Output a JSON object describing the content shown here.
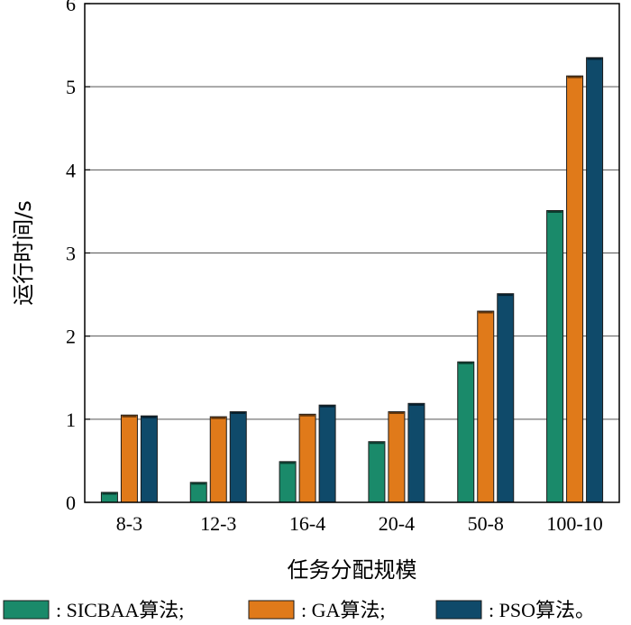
{
  "chart_data": {
    "type": "bar",
    "categories": [
      "8-3",
      "12-3",
      "16-4",
      "20-4",
      "50-8",
      "100-10"
    ],
    "series": [
      {
        "legend_label": ": SICBAA算法;",
        "color": "#1a8a6a",
        "values": [
          0.12,
          0.24,
          0.49,
          0.73,
          1.69,
          3.51
        ]
      },
      {
        "legend_label": ": GA算法;",
        "color": "#e07a1a",
        "values": [
          1.05,
          1.03,
          1.06,
          1.09,
          2.3,
          5.13
        ]
      },
      {
        "legend_label": ": PSO算法。",
        "color": "#0f4a6a",
        "values": [
          1.04,
          1.09,
          1.17,
          1.19,
          2.51,
          5.35
        ]
      }
    ],
    "xlabel": "任务分配规模",
    "ylabel": "运行时间/s",
    "ylim": [
      0,
      6
    ],
    "yticks": [
      "0",
      "1",
      "2",
      "3",
      "4",
      "5",
      "6"
    ],
    "grid": "horizontal",
    "legend_position": "bottom"
  }
}
